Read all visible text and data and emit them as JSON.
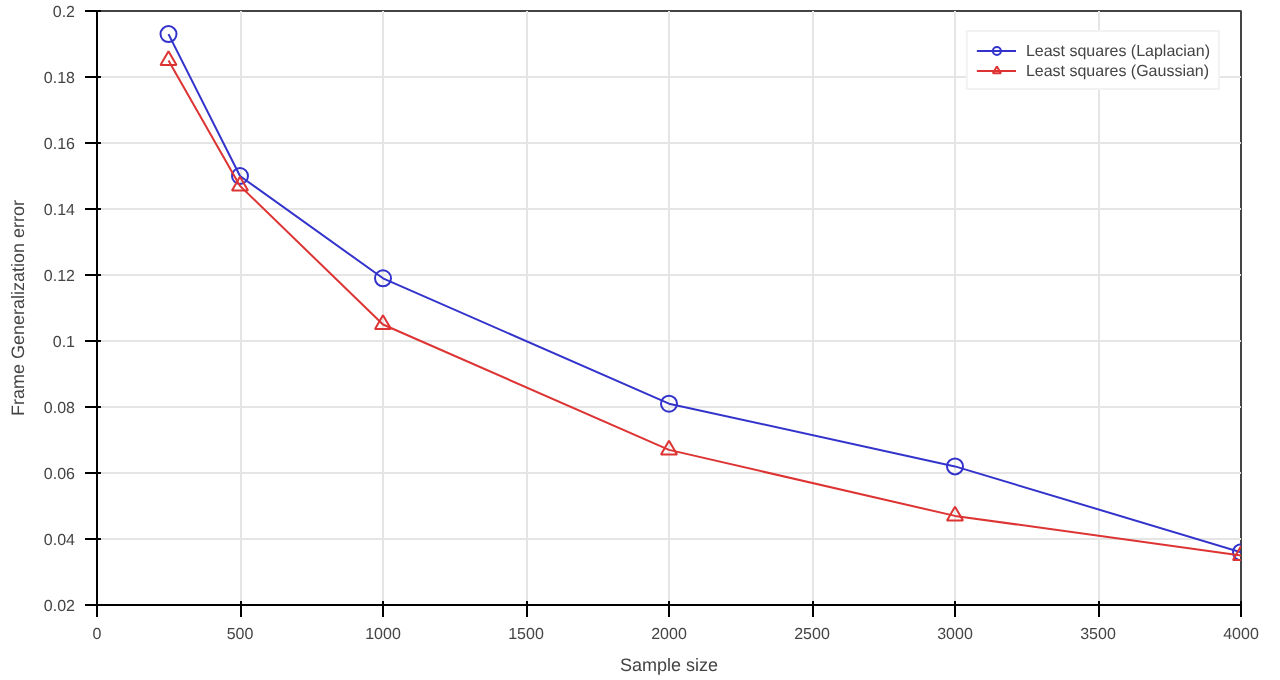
{
  "chart_data": {
    "type": "line",
    "xlabel": "Sample size",
    "ylabel": "Frame Generalization error",
    "x": [
      250,
      500,
      1000,
      2000,
      3000,
      4000
    ],
    "series": [
      {
        "name": "Least squares (Laplacian)",
        "color": "#3333cc",
        "marker": "circle",
        "values": [
          0.193,
          0.15,
          0.119,
          0.081,
          0.062,
          0.036
        ]
      },
      {
        "name": "Least squares (Gaussian)",
        "color": "#dd3333",
        "marker": "triangle",
        "values": [
          0.185,
          0.147,
          0.105,
          0.067,
          0.047,
          0.035
        ]
      }
    ],
    "xlim": [
      0,
      4000
    ],
    "xticks": [
      0,
      500,
      1000,
      1500,
      2000,
      2500,
      3000,
      3500,
      4000
    ],
    "ylim": [
      0.02,
      0.2
    ],
    "yticks": [
      {
        "value": 0.02,
        "label": "0.02"
      },
      {
        "value": 0.04,
        "label": "0.04"
      },
      {
        "value": 0.06,
        "label": "0.06"
      },
      {
        "value": 0.08,
        "label": "0.08"
      },
      {
        "value": 0.1,
        "label": "0.1"
      },
      {
        "value": 0.12,
        "label": "0.12"
      },
      {
        "value": 0.14,
        "label": "0.14"
      },
      {
        "value": 0.16,
        "label": "0.16"
      },
      {
        "value": 0.18,
        "label": "0.18"
      },
      {
        "value": 0.2,
        "label": "0.2"
      }
    ],
    "grid": true,
    "legend": "top right",
    "line_style": "solid"
  }
}
